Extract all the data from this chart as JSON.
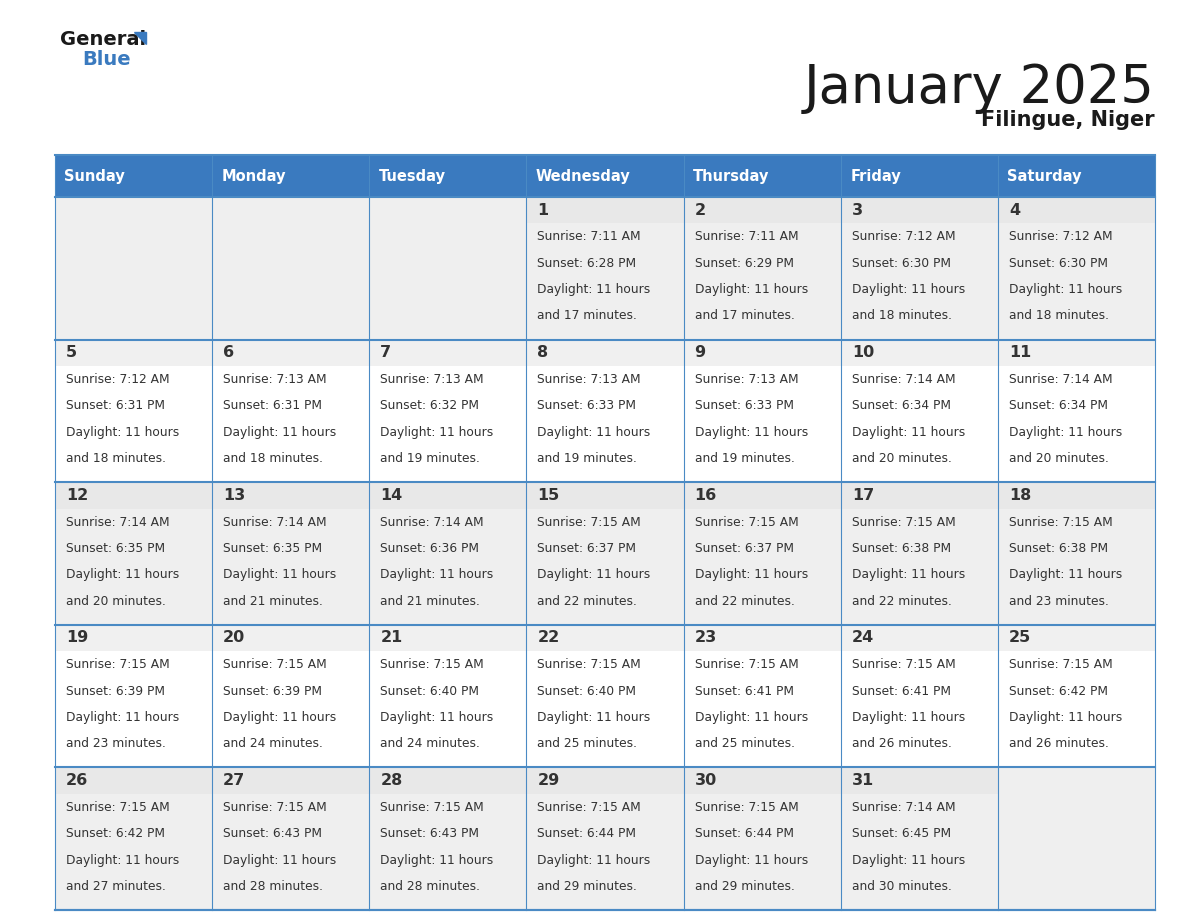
{
  "title": "January 2025",
  "subtitle": "Filingue, Niger",
  "days_of_week": [
    "Sunday",
    "Monday",
    "Tuesday",
    "Wednesday",
    "Thursday",
    "Friday",
    "Saturday"
  ],
  "header_bg": "#3a7abf",
  "header_text": "#ffffff",
  "row_bg_light": "#efefef",
  "row_bg_white": "#ffffff",
  "cell_border_color": "#4a8ac4",
  "day_number_color": "#333333",
  "info_text_color": "#333333",
  "title_color": "#1a1a1a",
  "subtitle_color": "#1a1a1a",
  "logo_general_color": "#1a1a1a",
  "logo_blue_color": "#3a7abf",
  "logo_triangle_color": "#3a7abf",
  "calendar_data": [
    [
      null,
      null,
      null,
      {
        "day": 1,
        "sunrise": "7:11 AM",
        "sunset": "6:28 PM",
        "daylight": "11 hours and 17 minutes."
      },
      {
        "day": 2,
        "sunrise": "7:11 AM",
        "sunset": "6:29 PM",
        "daylight": "11 hours and 17 minutes."
      },
      {
        "day": 3,
        "sunrise": "7:12 AM",
        "sunset": "6:30 PM",
        "daylight": "11 hours and 18 minutes."
      },
      {
        "day": 4,
        "sunrise": "7:12 AM",
        "sunset": "6:30 PM",
        "daylight": "11 hours and 18 minutes."
      }
    ],
    [
      {
        "day": 5,
        "sunrise": "7:12 AM",
        "sunset": "6:31 PM",
        "daylight": "11 hours and 18 minutes."
      },
      {
        "day": 6,
        "sunrise": "7:13 AM",
        "sunset": "6:31 PM",
        "daylight": "11 hours and 18 minutes."
      },
      {
        "day": 7,
        "sunrise": "7:13 AM",
        "sunset": "6:32 PM",
        "daylight": "11 hours and 19 minutes."
      },
      {
        "day": 8,
        "sunrise": "7:13 AM",
        "sunset": "6:33 PM",
        "daylight": "11 hours and 19 minutes."
      },
      {
        "day": 9,
        "sunrise": "7:13 AM",
        "sunset": "6:33 PM",
        "daylight": "11 hours and 19 minutes."
      },
      {
        "day": 10,
        "sunrise": "7:14 AM",
        "sunset": "6:34 PM",
        "daylight": "11 hours and 20 minutes."
      },
      {
        "day": 11,
        "sunrise": "7:14 AM",
        "sunset": "6:34 PM",
        "daylight": "11 hours and 20 minutes."
      }
    ],
    [
      {
        "day": 12,
        "sunrise": "7:14 AM",
        "sunset": "6:35 PM",
        "daylight": "11 hours and 20 minutes."
      },
      {
        "day": 13,
        "sunrise": "7:14 AM",
        "sunset": "6:35 PM",
        "daylight": "11 hours and 21 minutes."
      },
      {
        "day": 14,
        "sunrise": "7:14 AM",
        "sunset": "6:36 PM",
        "daylight": "11 hours and 21 minutes."
      },
      {
        "day": 15,
        "sunrise": "7:15 AM",
        "sunset": "6:37 PM",
        "daylight": "11 hours and 22 minutes."
      },
      {
        "day": 16,
        "sunrise": "7:15 AM",
        "sunset": "6:37 PM",
        "daylight": "11 hours and 22 minutes."
      },
      {
        "day": 17,
        "sunrise": "7:15 AM",
        "sunset": "6:38 PM",
        "daylight": "11 hours and 22 minutes."
      },
      {
        "day": 18,
        "sunrise": "7:15 AM",
        "sunset": "6:38 PM",
        "daylight": "11 hours and 23 minutes."
      }
    ],
    [
      {
        "day": 19,
        "sunrise": "7:15 AM",
        "sunset": "6:39 PM",
        "daylight": "11 hours and 23 minutes."
      },
      {
        "day": 20,
        "sunrise": "7:15 AM",
        "sunset": "6:39 PM",
        "daylight": "11 hours and 24 minutes."
      },
      {
        "day": 21,
        "sunrise": "7:15 AM",
        "sunset": "6:40 PM",
        "daylight": "11 hours and 24 minutes."
      },
      {
        "day": 22,
        "sunrise": "7:15 AM",
        "sunset": "6:40 PM",
        "daylight": "11 hours and 25 minutes."
      },
      {
        "day": 23,
        "sunrise": "7:15 AM",
        "sunset": "6:41 PM",
        "daylight": "11 hours and 25 minutes."
      },
      {
        "day": 24,
        "sunrise": "7:15 AM",
        "sunset": "6:41 PM",
        "daylight": "11 hours and 26 minutes."
      },
      {
        "day": 25,
        "sunrise": "7:15 AM",
        "sunset": "6:42 PM",
        "daylight": "11 hours and 26 minutes."
      }
    ],
    [
      {
        "day": 26,
        "sunrise": "7:15 AM",
        "sunset": "6:42 PM",
        "daylight": "11 hours and 27 minutes."
      },
      {
        "day": 27,
        "sunrise": "7:15 AM",
        "sunset": "6:43 PM",
        "daylight": "11 hours and 28 minutes."
      },
      {
        "day": 28,
        "sunrise": "7:15 AM",
        "sunset": "6:43 PM",
        "daylight": "11 hours and 28 minutes."
      },
      {
        "day": 29,
        "sunrise": "7:15 AM",
        "sunset": "6:44 PM",
        "daylight": "11 hours and 29 minutes."
      },
      {
        "day": 30,
        "sunrise": "7:15 AM",
        "sunset": "6:44 PM",
        "daylight": "11 hours and 29 minutes."
      },
      {
        "day": 31,
        "sunrise": "7:14 AM",
        "sunset": "6:45 PM",
        "daylight": "11 hours and 30 minutes."
      },
      null
    ]
  ]
}
